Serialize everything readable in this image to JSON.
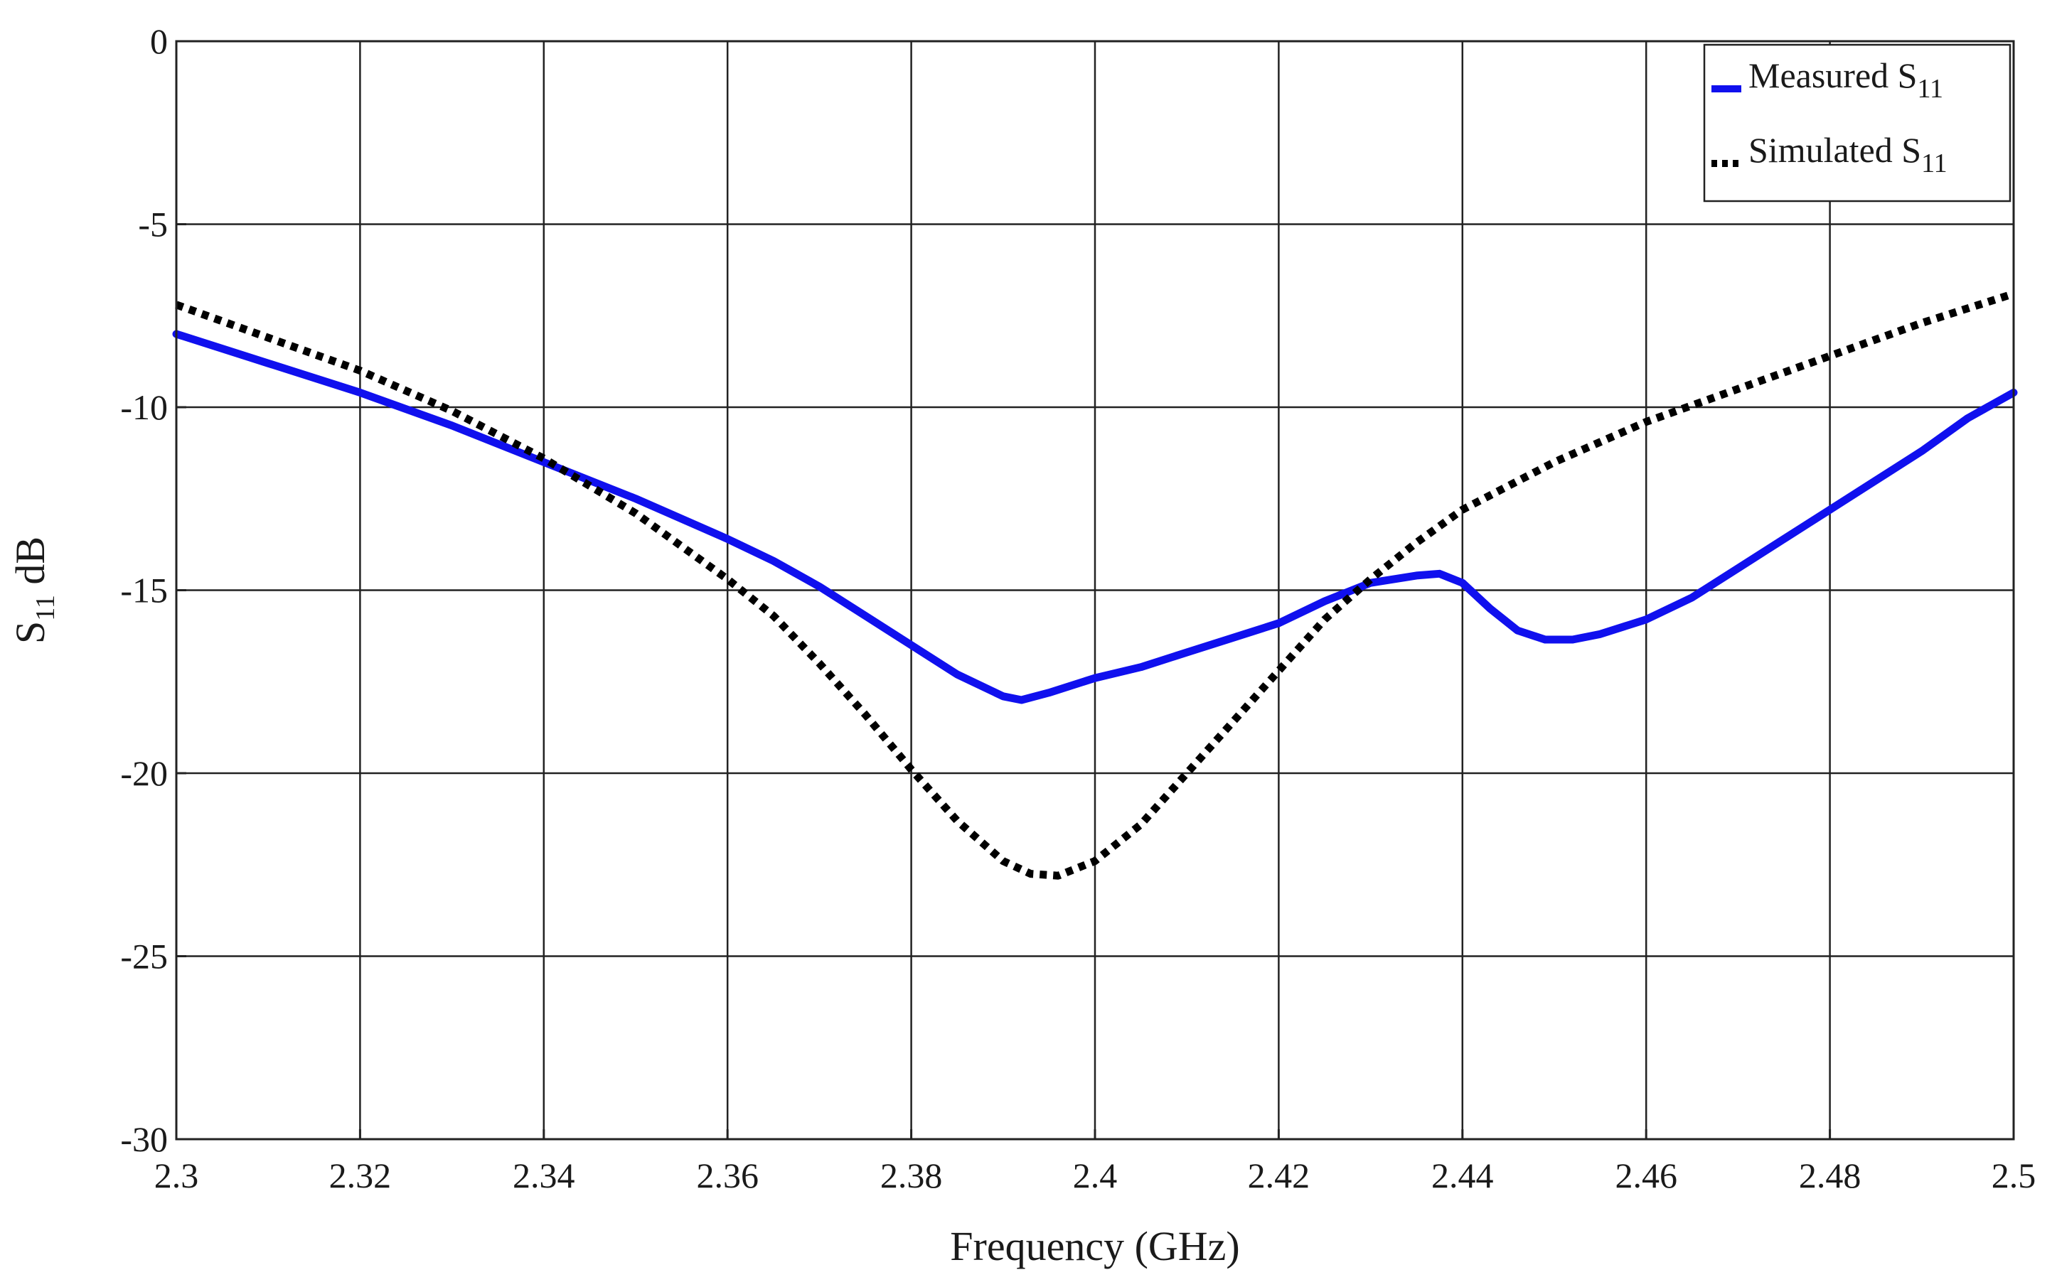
{
  "chart_data": {
    "type": "line",
    "xlabel": "Frequency (GHz)",
    "ylabel": {
      "main": "S",
      "sub": "11",
      "suffix": " dB"
    },
    "xlim": [
      2.3,
      2.5
    ],
    "ylim": [
      -30,
      0
    ],
    "xticks": [
      2.3,
      2.32,
      2.34,
      2.36,
      2.38,
      2.4,
      2.42,
      2.44,
      2.46,
      2.48,
      2.5
    ],
    "xtick_labels": [
      "2.3",
      "2.32",
      "2.34",
      "2.36",
      "2.38",
      "2.4",
      "2.42",
      "2.44",
      "2.46",
      "2.48",
      "2.5"
    ],
    "yticks": [
      0,
      -5,
      -10,
      -15,
      -20,
      -25,
      -30
    ],
    "ytick_labels": [
      "0",
      "-5",
      "-10",
      "-15",
      "-20",
      "-25",
      "-30"
    ],
    "grid": true,
    "legend_position": "top-right",
    "series": [
      {
        "name": "Measured S11",
        "legend": {
          "main": "Measured S",
          "sub": "11"
        },
        "color": "#1010ee",
        "style": "solid",
        "x": [
          2.3,
          2.31,
          2.32,
          2.33,
          2.34,
          2.35,
          2.36,
          2.365,
          2.37,
          2.375,
          2.38,
          2.385,
          2.39,
          2.392,
          2.395,
          2.4,
          2.405,
          2.41,
          2.415,
          2.42,
          2.425,
          2.43,
          2.435,
          2.4375,
          2.44,
          2.443,
          2.446,
          2.449,
          2.452,
          2.455,
          2.46,
          2.465,
          2.47,
          2.475,
          2.48,
          2.485,
          2.49,
          2.495,
          2.5
        ],
        "y": [
          -8.0,
          -8.8,
          -9.6,
          -10.5,
          -11.5,
          -12.5,
          -13.6,
          -14.2,
          -14.9,
          -15.7,
          -16.5,
          -17.3,
          -17.9,
          -18.0,
          -17.8,
          -17.4,
          -17.1,
          -16.7,
          -16.3,
          -15.9,
          -15.3,
          -14.8,
          -14.6,
          -14.55,
          -14.8,
          -15.5,
          -16.1,
          -16.35,
          -16.35,
          -16.2,
          -15.8,
          -15.2,
          -14.4,
          -13.6,
          -12.8,
          -12.0,
          -11.2,
          -10.3,
          -9.6
        ]
      },
      {
        "name": "Simulated S11",
        "legend": {
          "main": "Simulated S",
          "sub": "11"
        },
        "color": "#000000",
        "style": "dotted",
        "x": [
          2.3,
          2.31,
          2.32,
          2.33,
          2.34,
          2.35,
          2.36,
          2.365,
          2.37,
          2.375,
          2.38,
          2.385,
          2.39,
          2.393,
          2.396,
          2.4,
          2.405,
          2.41,
          2.415,
          2.42,
          2.425,
          2.43,
          2.435,
          2.44,
          2.45,
          2.46,
          2.47,
          2.48,
          2.49,
          2.5
        ],
        "y": [
          -7.2,
          -8.1,
          -9.0,
          -10.1,
          -11.4,
          -12.9,
          -14.7,
          -15.7,
          -17.0,
          -18.4,
          -19.9,
          -21.3,
          -22.4,
          -22.75,
          -22.8,
          -22.4,
          -21.4,
          -20.0,
          -18.6,
          -17.2,
          -15.8,
          -14.7,
          -13.7,
          -12.8,
          -11.5,
          -10.4,
          -9.5,
          -8.6,
          -7.7,
          -6.9
        ]
      }
    ]
  }
}
